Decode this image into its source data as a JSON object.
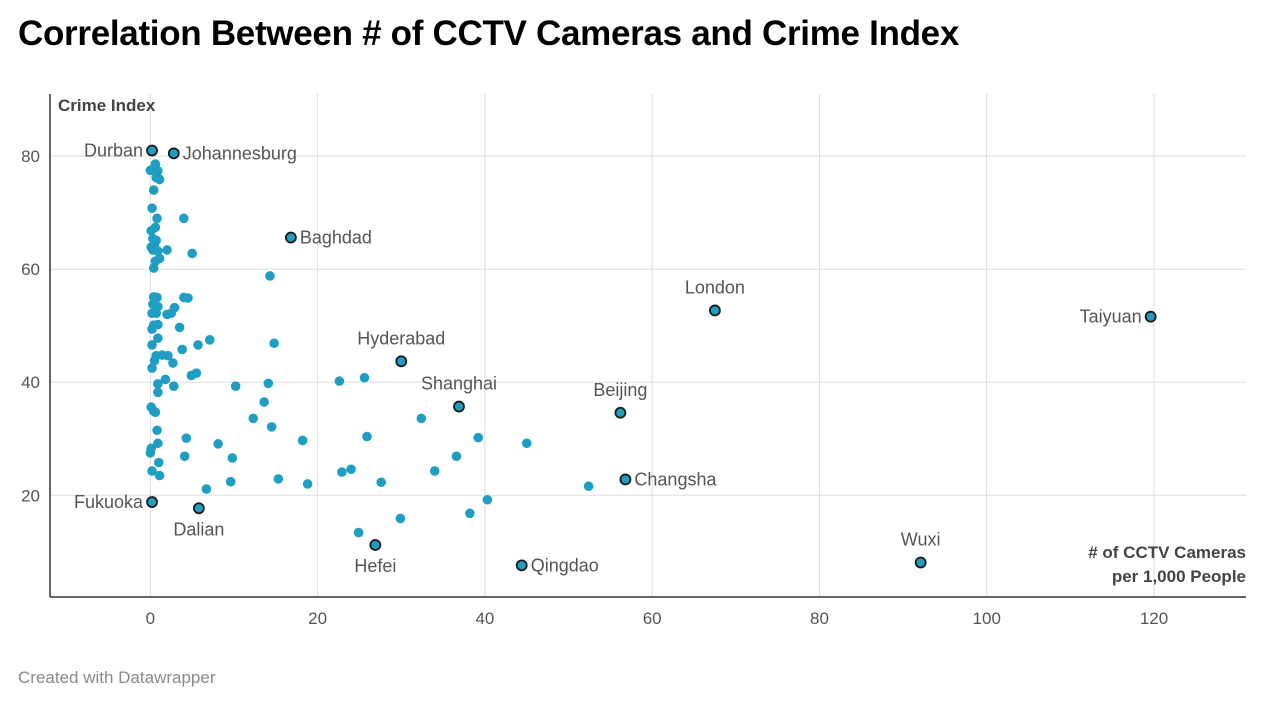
{
  "title": "Correlation Between # of CCTV Cameras and Crime Index",
  "footer": "Created with Datawrapper",
  "colors": {
    "dot": "#1f9ec4",
    "dot_highlight": "#1f9ec4",
    "dot_outline": "#1a1a1a",
    "grid": "#dddddd",
    "axis": "#333333",
    "label": "#555555",
    "tick": "#555555"
  },
  "chart_data": {
    "type": "scatter",
    "title": "Correlation Between # of CCTV Cameras and Crime Index",
    "ylabel": "Crime Index",
    "xlabel_lines": [
      "# of CCTV Cameras",
      "per 1,000 People"
    ],
    "xlim": [
      -12,
      131
    ],
    "ylim": [
      2,
      91
    ],
    "xticks": [
      0,
      20,
      40,
      60,
      80,
      100,
      120
    ],
    "yticks": [
      20,
      40,
      60,
      80
    ],
    "grid": true,
    "labeled_points": [
      {
        "label": "Durban",
        "x": 0.2,
        "y": 81,
        "label_pos": "left"
      },
      {
        "label": "Johannesburg",
        "x": 2.8,
        "y": 80.5,
        "label_pos": "right"
      },
      {
        "label": "Baghdad",
        "x": 16.8,
        "y": 65.6,
        "label_pos": "right"
      },
      {
        "label": "London",
        "x": 67.5,
        "y": 52.7,
        "label_pos": "above"
      },
      {
        "label": "Taiyuan",
        "x": 119.6,
        "y": 51.6,
        "label_pos": "left"
      },
      {
        "label": "Hyderabad",
        "x": 30.0,
        "y": 43.7,
        "label_pos": "above"
      },
      {
        "label": "Shanghai",
        "x": 36.9,
        "y": 35.7,
        "label_pos": "above"
      },
      {
        "label": "Beijing",
        "x": 56.2,
        "y": 34.6,
        "label_pos": "above"
      },
      {
        "label": "Changsha",
        "x": 56.8,
        "y": 22.8,
        "label_pos": "right"
      },
      {
        "label": "Fukuoka",
        "x": 0.2,
        "y": 18.8,
        "label_pos": "left"
      },
      {
        "label": "Dalian",
        "x": 5.8,
        "y": 17.7,
        "label_pos": "below"
      },
      {
        "label": "Hefei",
        "x": 26.9,
        "y": 11.2,
        "label_pos": "below"
      },
      {
        "label": "Qingdao",
        "x": 44.4,
        "y": 7.6,
        "label_pos": "right"
      },
      {
        "label": "Wuxi",
        "x": 92.1,
        "y": 8.1,
        "label_pos": "above"
      }
    ],
    "points": [
      [
        0.0,
        77.5
      ],
      [
        0.6,
        78.6
      ],
      [
        0.9,
        77.4
      ],
      [
        0.7,
        76.2
      ],
      [
        1.1,
        75.9
      ],
      [
        0.4,
        74.0
      ],
      [
        0.2,
        70.8
      ],
      [
        0.8,
        69.0
      ],
      [
        4.0,
        69.0
      ],
      [
        0.6,
        67.4
      ],
      [
        0.1,
        66.8
      ],
      [
        0.3,
        65.4
      ],
      [
        0.7,
        65.1
      ],
      [
        0.5,
        64.3
      ],
      [
        0.1,
        63.9
      ],
      [
        0.3,
        63.4
      ],
      [
        0.9,
        63.2
      ],
      [
        2.0,
        63.4
      ],
      [
        5.0,
        62.8
      ],
      [
        1.1,
        61.9
      ],
      [
        0.6,
        61.4
      ],
      [
        0.4,
        60.2
      ],
      [
        14.3,
        58.8
      ],
      [
        0.4,
        55.1
      ],
      [
        0.8,
        55.0
      ],
      [
        4.0,
        55.0
      ],
      [
        4.5,
        54.9
      ],
      [
        0.3,
        53.8
      ],
      [
        0.9,
        53.4
      ],
      [
        2.9,
        53.2
      ],
      [
        0.2,
        52.2
      ],
      [
        0.7,
        52.2
      ],
      [
        2.0,
        52.0
      ],
      [
        2.5,
        52.2
      ],
      [
        0.4,
        50.1
      ],
      [
        0.9,
        50.2
      ],
      [
        3.5,
        49.7
      ],
      [
        0.2,
        49.4
      ],
      [
        0.9,
        47.8
      ],
      [
        7.1,
        47.5
      ],
      [
        5.7,
        46.6
      ],
      [
        14.8,
        46.9
      ],
      [
        0.2,
        46.6
      ],
      [
        0.7,
        44.7
      ],
      [
        1.4,
        44.8
      ],
      [
        2.1,
        44.7
      ],
      [
        0.5,
        43.8
      ],
      [
        2.7,
        43.4
      ],
      [
        0.2,
        42.5
      ],
      [
        3.8,
        45.8
      ],
      [
        5.5,
        41.6
      ],
      [
        4.9,
        41.2
      ],
      [
        1.8,
        40.5
      ],
      [
        0.9,
        39.7
      ],
      [
        2.8,
        39.3
      ],
      [
        10.2,
        39.3
      ],
      [
        14.1,
        39.8
      ],
      [
        22.6,
        40.2
      ],
      [
        25.6,
        40.8
      ],
      [
        0.9,
        38.2
      ],
      [
        13.6,
        36.5
      ],
      [
        0.1,
        35.6
      ],
      [
        0.4,
        34.9
      ],
      [
        0.6,
        34.7
      ],
      [
        12.3,
        33.6
      ],
      [
        32.4,
        33.6
      ],
      [
        14.5,
        32.1
      ],
      [
        0.8,
        31.5
      ],
      [
        39.2,
        30.2
      ],
      [
        25.9,
        30.4
      ],
      [
        4.3,
        30.1
      ],
      [
        18.2,
        29.7
      ],
      [
        45.0,
        29.2
      ],
      [
        0.9,
        29.2
      ],
      [
        8.1,
        29.1
      ],
      [
        0.1,
        28.3
      ],
      [
        0.0,
        27.5
      ],
      [
        4.1,
        26.9
      ],
      [
        9.8,
        26.6
      ],
      [
        36.6,
        26.9
      ],
      [
        1.0,
        25.8
      ],
      [
        0.2,
        24.3
      ],
      [
        1.1,
        23.5
      ],
      [
        24.0,
        24.6
      ],
      [
        22.9,
        24.1
      ],
      [
        34.0,
        24.3
      ],
      [
        15.3,
        22.9
      ],
      [
        9.6,
        22.4
      ],
      [
        18.8,
        22.0
      ],
      [
        27.6,
        22.3
      ],
      [
        52.4,
        21.6
      ],
      [
        6.7,
        21.1
      ],
      [
        40.3,
        19.2
      ],
      [
        38.2,
        16.8
      ],
      [
        29.9,
        15.9
      ],
      [
        24.9,
        13.4
      ]
    ]
  }
}
